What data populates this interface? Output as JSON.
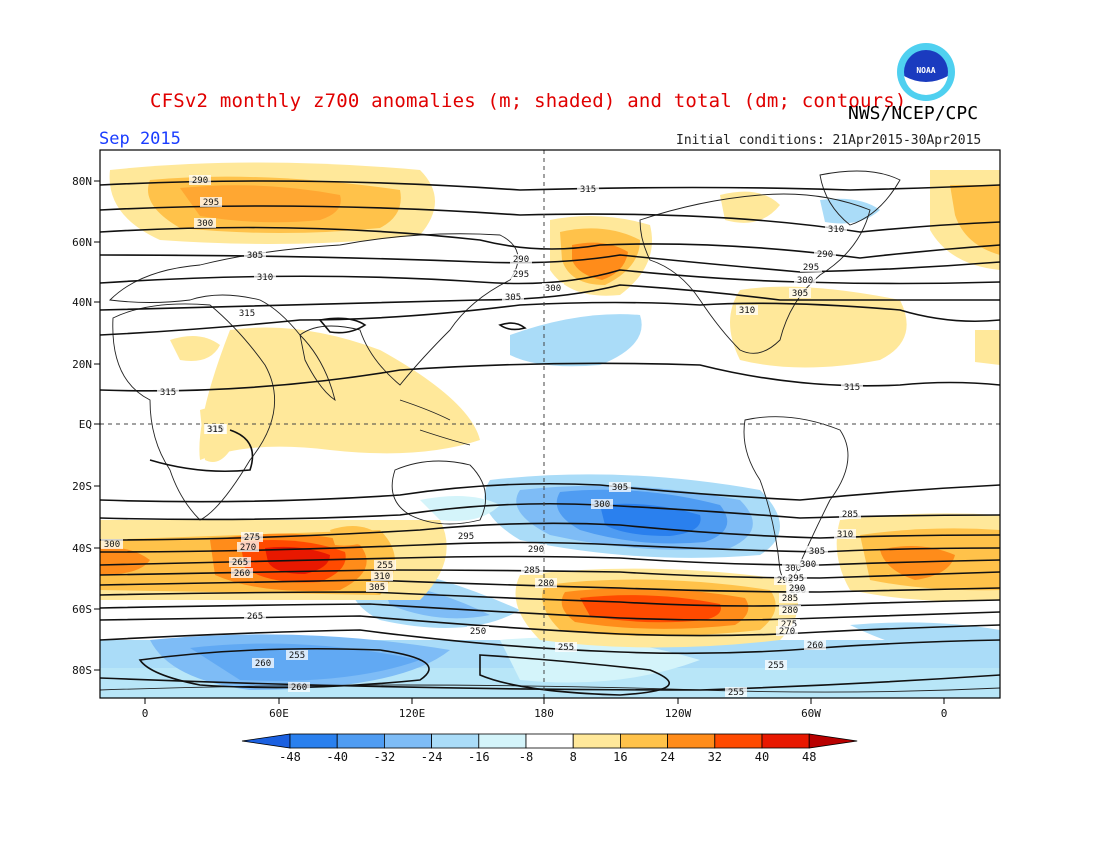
{
  "header": {
    "title": "CFSv2 monthly z700 anomalies (m; shaded) and total (dm; contours)",
    "agency": "NWS/NCEP/CPC",
    "month": "Sep 2015",
    "initial_conditions": "Initial conditions: 21Apr2015-30Apr2015",
    "logo_text": "NOAA",
    "logo_icon": "noaa-logo-icon"
  },
  "map": {
    "lat_labels": [
      "80N",
      "60N",
      "40N",
      "20N",
      "EQ",
      "20S",
      "40S",
      "60S",
      "80S"
    ],
    "lon_labels": [
      "0",
      "60E",
      "120E",
      "180",
      "120W",
      "60W",
      "0"
    ],
    "grid": "dashed EQ and 180 reference lines"
  },
  "colorbar": {
    "ticks": [
      "-48",
      "-40",
      "-32",
      "-24",
      "-16",
      "-8",
      "8",
      "16",
      "24",
      "32",
      "40",
      "48"
    ],
    "colors": [
      "#1b60e0",
      "#2a80ee",
      "#4f9cf2",
      "#7ebcf6",
      "#aadcf8",
      "#d4f4fa",
      "#ffffff",
      "#ffe89a",
      "#ffc24a",
      "#ff8c1a",
      "#ff4a00",
      "#e81800",
      "#b80000"
    ]
  },
  "contour_labels": [
    "290",
    "295",
    "300",
    "305",
    "310",
    "315",
    "290",
    "295",
    "300",
    "305",
    "310",
    "290",
    "295",
    "300",
    "305",
    "310",
    "315",
    "315",
    "315",
    "310",
    "305",
    "300",
    "295",
    "290",
    "285",
    "280",
    "275",
    "270",
    "265",
    "260",
    "255",
    "310",
    "305",
    "300",
    "295",
    "290",
    "285",
    "310",
    "305",
    "300",
    "295",
    "290",
    "285",
    "280",
    "275",
    "270",
    "265",
    "260",
    "255",
    "250",
    "255",
    "260",
    "255",
    "260",
    "255",
    "300",
    "315"
  ]
}
